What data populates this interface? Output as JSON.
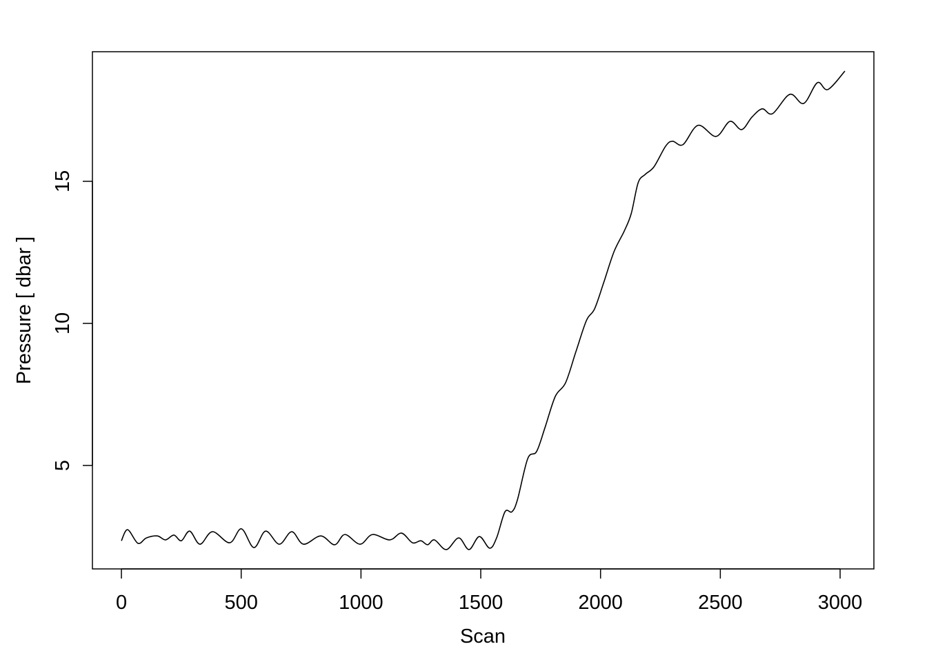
{
  "chart_data": {
    "type": "line",
    "title": "",
    "xlabel": "Scan",
    "ylabel": "Pressure [ dbar ]",
    "xlim": [
      -121,
      3141
    ],
    "ylim": [
      1.36,
      19.56
    ],
    "xticks": [
      0,
      500,
      1000,
      1500,
      2000,
      2500,
      3000
    ],
    "xtick_labels": [
      "0",
      "500",
      "1000",
      "1500",
      "2000",
      "2500",
      "3000"
    ],
    "yticks": [
      5,
      10,
      15
    ],
    "ytick_labels": [
      "5",
      "10",
      "15"
    ],
    "grid": false,
    "line_color": "#000000",
    "series": [
      {
        "x": [
          0,
          26,
          69,
          104,
          150,
          184,
          219,
          250,
          285,
          328,
          380,
          452,
          501,
          553,
          602,
          659,
          711,
          760,
          832,
          890,
          933,
          996,
          1048,
          1120,
          1169,
          1215,
          1250,
          1278,
          1307,
          1356,
          1408,
          1451,
          1494,
          1537,
          1566,
          1601,
          1630,
          1653,
          1696,
          1733,
          1768,
          1811,
          1854,
          1897,
          1941,
          1975,
          2013,
          2056,
          2099,
          2128,
          2157,
          2186,
          2223,
          2272,
          2301,
          2344,
          2407,
          2482,
          2540,
          2589,
          2632,
          2675,
          2718,
          2790,
          2848,
          2905,
          2949,
          3020
        ],
        "y": [
          2.35,
          2.74,
          2.26,
          2.45,
          2.52,
          2.38,
          2.55,
          2.35,
          2.69,
          2.23,
          2.67,
          2.28,
          2.77,
          2.11,
          2.69,
          2.23,
          2.67,
          2.23,
          2.52,
          2.21,
          2.57,
          2.23,
          2.57,
          2.38,
          2.62,
          2.28,
          2.35,
          2.21,
          2.38,
          2.04,
          2.45,
          2.04,
          2.5,
          2.09,
          2.45,
          3.37,
          3.37,
          3.79,
          5.24,
          5.49,
          6.33,
          7.43,
          7.91,
          9.0,
          10.1,
          10.51,
          11.43,
          12.52,
          13.25,
          13.86,
          14.95,
          15.24,
          15.51,
          16.24,
          16.41,
          16.29,
          16.97,
          16.58,
          17.11,
          16.82,
          17.26,
          17.55,
          17.38,
          18.06,
          17.74,
          18.47,
          18.23,
          18.88
        ]
      }
    ]
  }
}
